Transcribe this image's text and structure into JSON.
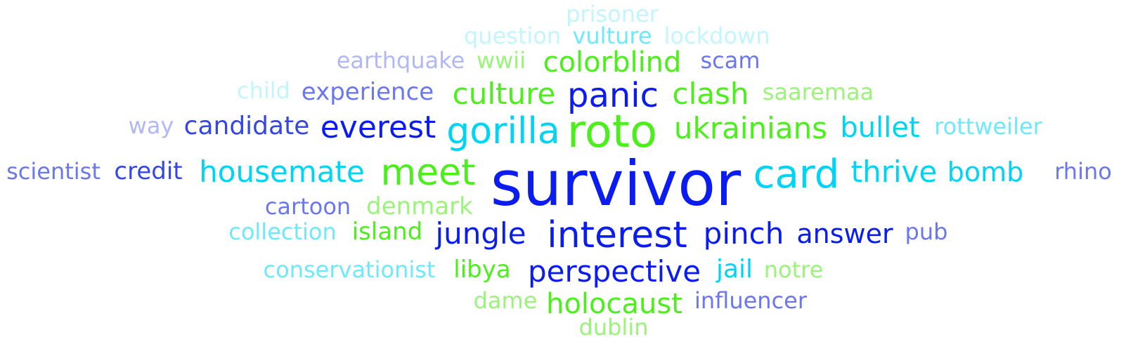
{
  "colors": {
    "deep_blue": "#0a1cf0",
    "medium_blue": "#3546e8",
    "periwinkle": "#6b77f0",
    "light_periwinkle": "#b2b8f6",
    "cyan": "#00d4f5",
    "light_cyan": "#6ee9fb",
    "pale_cyan": "#c2f5fd",
    "bright_green": "#4cef1c",
    "light_green": "#9af47a"
  },
  "words": [
    {
      "text": "survivor",
      "color": "deep_blue"
    },
    {
      "text": "roto",
      "color": "bright_green"
    },
    {
      "text": "card",
      "color": "cyan"
    },
    {
      "text": "gorilla",
      "color": "cyan"
    },
    {
      "text": "meet",
      "color": "bright_green"
    },
    {
      "text": "interest",
      "color": "deep_blue"
    },
    {
      "text": "panic",
      "color": "deep_blue"
    },
    {
      "text": "everest",
      "color": "deep_blue"
    },
    {
      "text": "housemate",
      "color": "cyan"
    },
    {
      "text": "ukrainians",
      "color": "bright_green"
    },
    {
      "text": "thrive",
      "color": "cyan"
    },
    {
      "text": "colorblind",
      "color": "bright_green"
    },
    {
      "text": "culture",
      "color": "bright_green"
    },
    {
      "text": "clash",
      "color": "bright_green"
    },
    {
      "text": "jungle",
      "color": "deep_blue"
    },
    {
      "text": "pinch",
      "color": "deep_blue"
    },
    {
      "text": "perspective",
      "color": "deep_blue"
    },
    {
      "text": "answer",
      "color": "deep_blue"
    },
    {
      "text": "bullet",
      "color": "cyan"
    },
    {
      "text": "bomb",
      "color": "cyan"
    },
    {
      "text": "holocaust",
      "color": "bright_green"
    },
    {
      "text": "candidate",
      "color": "medium_blue"
    },
    {
      "text": "experience",
      "color": "periwinkle"
    },
    {
      "text": "credit",
      "color": "medium_blue"
    },
    {
      "text": "denmark",
      "color": "light_green"
    },
    {
      "text": "island",
      "color": "bright_green"
    },
    {
      "text": "libya",
      "color": "bright_green"
    },
    {
      "text": "jail",
      "color": "cyan"
    },
    {
      "text": "scam",
      "color": "periwinkle"
    },
    {
      "text": "saaremaa",
      "color": "light_green"
    },
    {
      "text": "rottweiler",
      "color": "light_cyan"
    },
    {
      "text": "rhino",
      "color": "periwinkle"
    },
    {
      "text": "scientist",
      "color": "periwinkle"
    },
    {
      "text": "cartoon",
      "color": "periwinkle"
    },
    {
      "text": "collection",
      "color": "light_cyan"
    },
    {
      "text": "conservationist",
      "color": "light_cyan"
    },
    {
      "text": "pub",
      "color": "periwinkle"
    },
    {
      "text": "notre",
      "color": "light_green"
    },
    {
      "text": "influencer",
      "color": "periwinkle"
    },
    {
      "text": "dame",
      "color": "light_green"
    },
    {
      "text": "dublin",
      "color": "light_green"
    },
    {
      "text": "wwii",
      "color": "light_green"
    },
    {
      "text": "earthquake",
      "color": "light_periwinkle"
    },
    {
      "text": "question",
      "color": "pale_cyan"
    },
    {
      "text": "vulture",
      "color": "light_cyan"
    },
    {
      "text": "lockdown",
      "color": "pale_cyan"
    },
    {
      "text": "prisoner",
      "color": "pale_cyan"
    },
    {
      "text": "child",
      "color": "pale_cyan"
    },
    {
      "text": "way",
      "color": "light_periwinkle"
    }
  ]
}
